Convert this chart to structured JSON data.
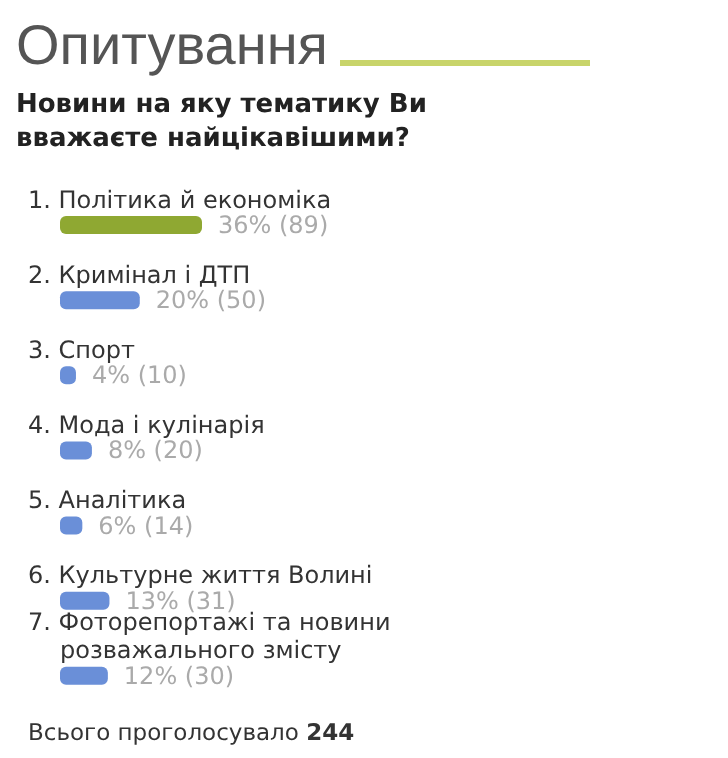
{
  "chart_data": {
    "type": "bar",
    "orientation": "horizontal",
    "title": "Опитування",
    "subtitle": "Новини на яку тематику Ви вважаєте найцікавішими?",
    "categories": [
      "1. Політика й економіка",
      "2. Кримінал і ДТП",
      "3. Спорт",
      "4. Мода і кулінарія",
      "5. Аналітика",
      "6. Культурне життя Волині",
      "7. Фоторепортажі та новини розважального змісту"
    ],
    "values": [
      89,
      50,
      10,
      20,
      14,
      31,
      30
    ],
    "colors": [
      "#8fa832",
      "#6a8fd8",
      "#6a8fd8",
      "#6a8fd8",
      "#6a8fd8",
      "#6a8fd8",
      "#6a8fd8"
    ],
    "value_labels": [
      "36% (89)",
      "20% (50)",
      "4% (10)",
      "8% (20)",
      "6% (14)",
      "13% (31)",
      "12% (30)"
    ],
    "annotations": [
      "Всього проголосувало 244"
    ]
  }
}
